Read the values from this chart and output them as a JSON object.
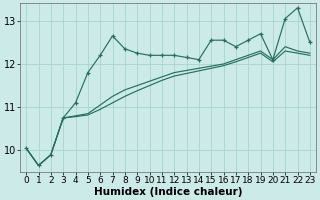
{
  "xlabel": "Humidex (Indice chaleur)",
  "x": [
    0,
    1,
    2,
    3,
    4,
    5,
    6,
    7,
    8,
    9,
    10,
    11,
    12,
    13,
    14,
    15,
    16,
    17,
    18,
    19,
    20,
    21,
    22,
    23
  ],
  "y_jagged": [
    10.05,
    9.65,
    9.9,
    10.75,
    11.1,
    11.8,
    12.2,
    12.65,
    12.35,
    12.25,
    12.2,
    12.2,
    12.2,
    12.15,
    12.1,
    12.55,
    12.55,
    12.4,
    12.55,
    12.7,
    12.1,
    13.05,
    13.3,
    12.5
  ],
  "y_line1": [
    10.05,
    9.65,
    9.9,
    10.75,
    10.8,
    10.85,
    11.05,
    11.25,
    11.4,
    11.5,
    11.6,
    11.7,
    11.8,
    11.85,
    11.9,
    11.95,
    12.0,
    12.1,
    12.2,
    12.3,
    12.1,
    12.4,
    12.3,
    12.25
  ],
  "y_line2": [
    10.05,
    9.65,
    9.9,
    10.75,
    10.78,
    10.82,
    10.95,
    11.1,
    11.25,
    11.38,
    11.5,
    11.62,
    11.72,
    11.78,
    11.84,
    11.9,
    11.96,
    12.05,
    12.15,
    12.25,
    12.05,
    12.3,
    12.25,
    12.2
  ],
  "line_color": "#286e62",
  "bg_color": "#cceae8",
  "grid_color": "#a8d4d0",
  "ylim": [
    9.5,
    13.4
  ],
  "xlim": [
    -0.5,
    23.5
  ],
  "yticks": [
    10,
    11,
    12,
    13
  ],
  "xticks": [
    0,
    1,
    2,
    3,
    4,
    5,
    6,
    7,
    8,
    9,
    10,
    11,
    12,
    13,
    14,
    15,
    16,
    17,
    18,
    19,
    20,
    21,
    22,
    23
  ],
  "xlabel_fontsize": 7.5,
  "tick_fontsize": 6.5
}
